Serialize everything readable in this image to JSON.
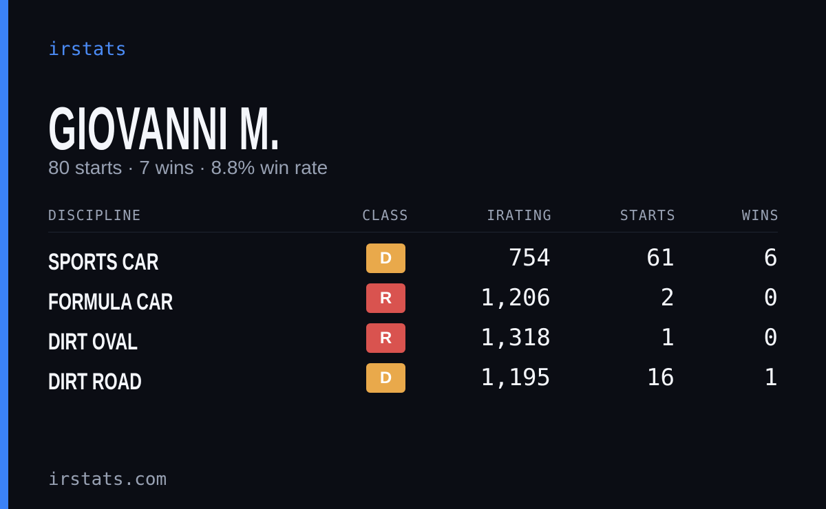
{
  "brand": "irstats",
  "driver": {
    "name": "GIOVANNI M.",
    "summary": "80 starts · 7 wins · 8.8% win rate"
  },
  "table": {
    "headers": [
      "DISCIPLINE",
      "CLASS",
      "IRATING",
      "STARTS",
      "WINS"
    ],
    "rows": [
      {
        "discipline": "SPORTS CAR",
        "class": "D",
        "class_color": "#e9a94b",
        "irating": "754",
        "starts": "61",
        "wins": "6"
      },
      {
        "discipline": "FORMULA CAR",
        "class": "R",
        "class_color": "#d9534f",
        "irating": "1,206",
        "starts": "2",
        "wins": "0"
      },
      {
        "discipline": "DIRT OVAL",
        "class": "R",
        "class_color": "#d9534f",
        "irating": "1,318",
        "starts": "1",
        "wins": "0"
      },
      {
        "discipline": "DIRT ROAD",
        "class": "D",
        "class_color": "#e9a94b",
        "irating": "1,195",
        "starts": "16",
        "wins": "1"
      }
    ]
  },
  "footer": "irstats.com"
}
